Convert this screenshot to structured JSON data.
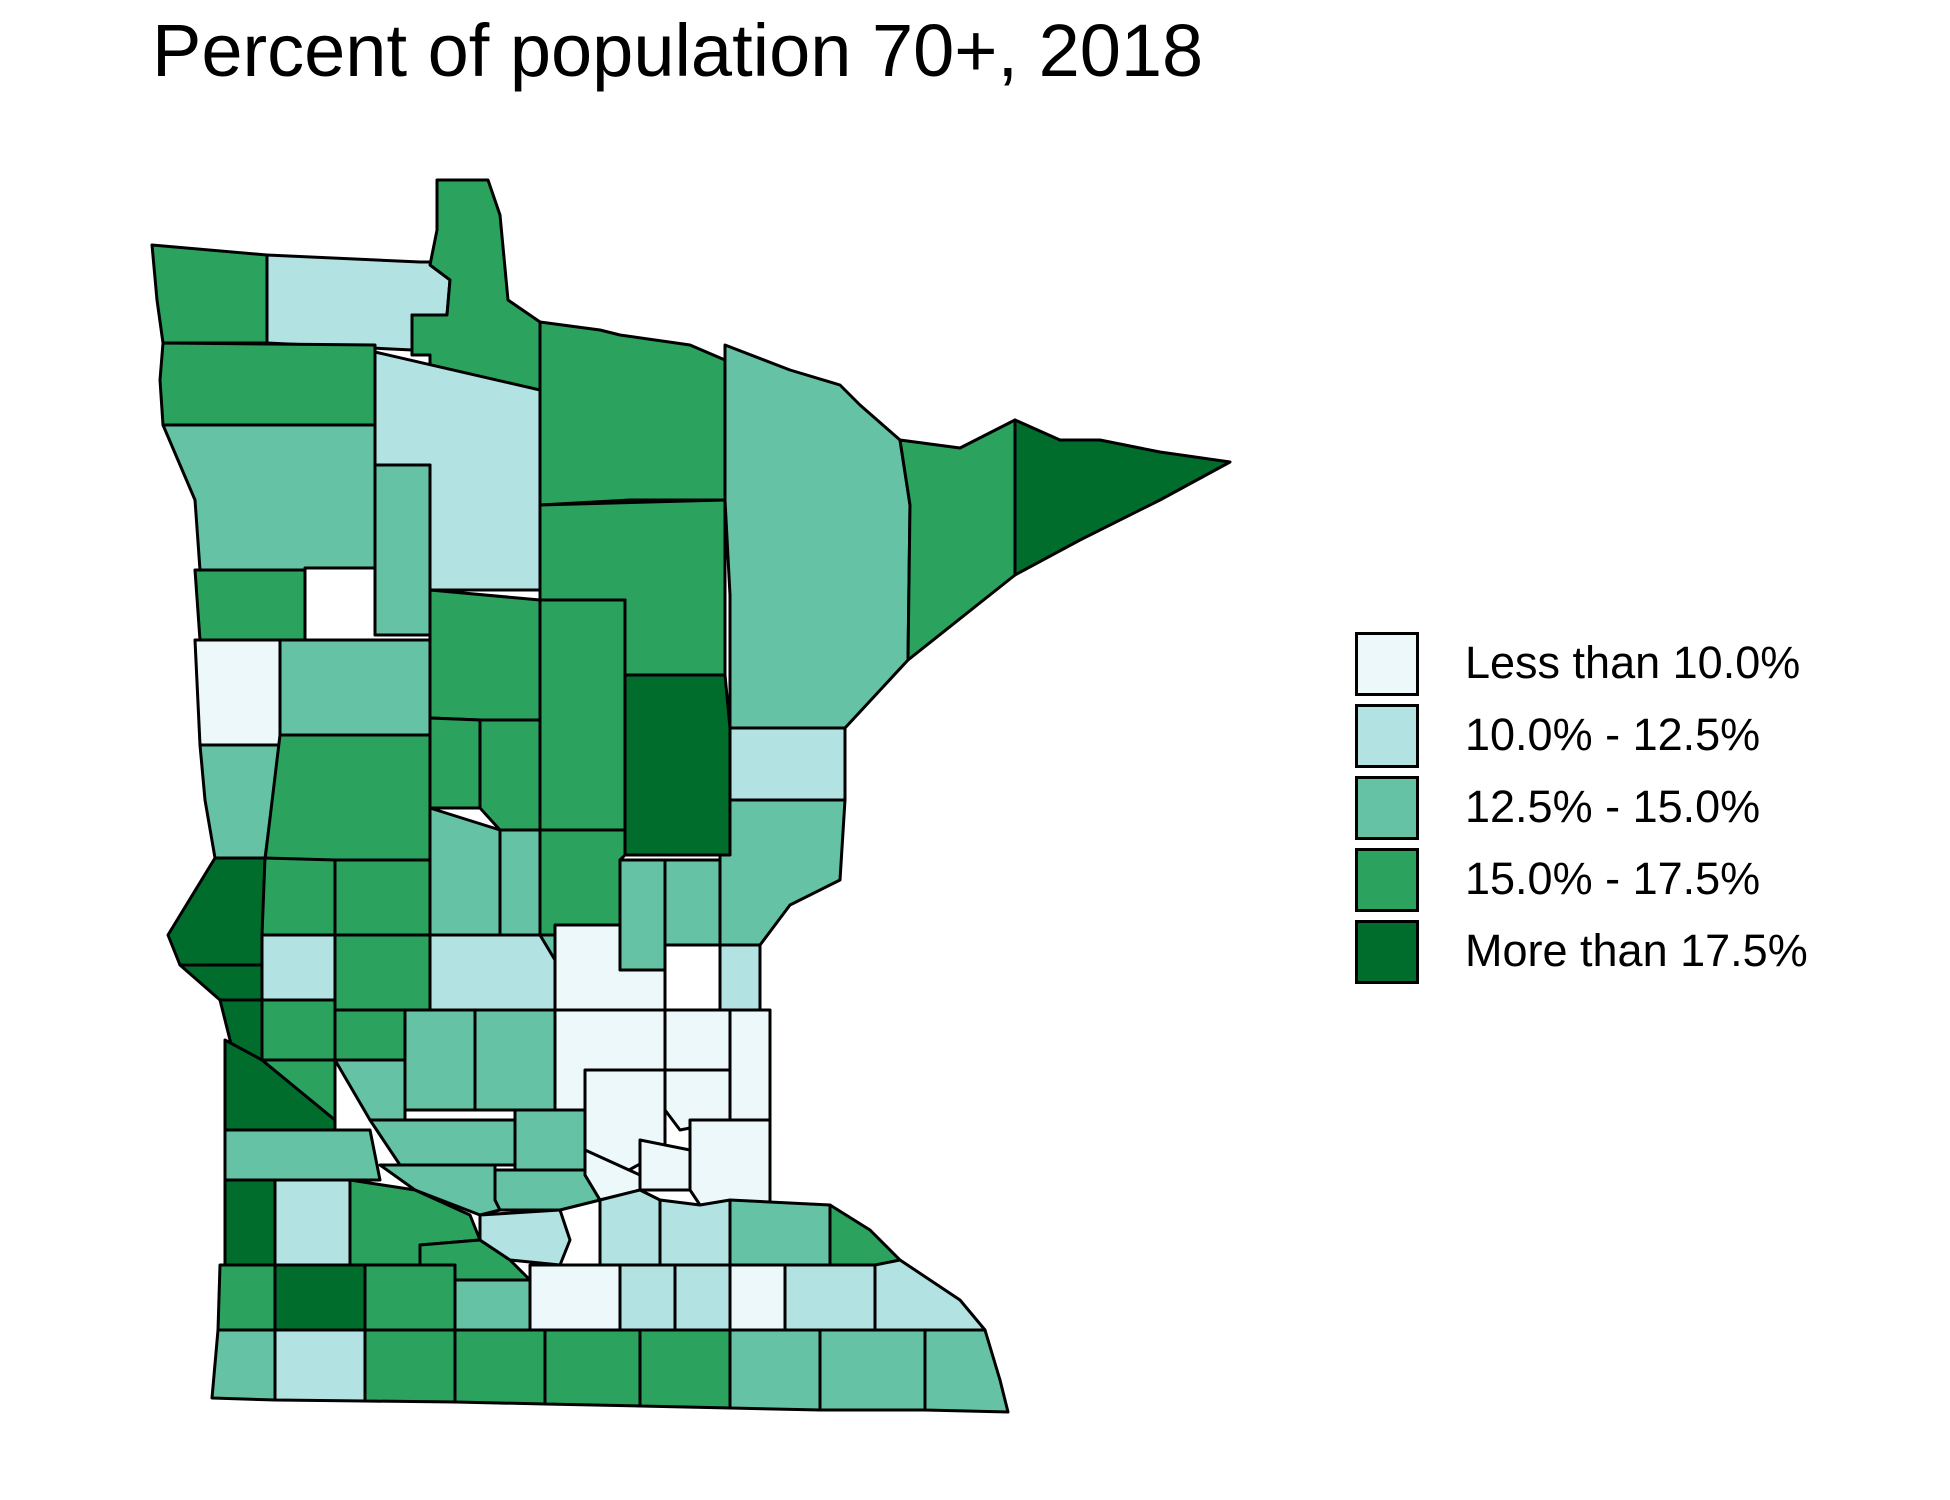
{
  "title": "Percent of population 70+, 2018",
  "legend": {
    "items": [
      {
        "label": "Less than 10.0%",
        "color": "#edf8fb"
      },
      {
        "label": "10.0% - 12.5%",
        "color": "#b2e2e2"
      },
      {
        "label": "12.5% - 15.0%",
        "color": "#66c2a4"
      },
      {
        "label": "15.0% - 17.5%",
        "color": "#2ca25f"
      },
      {
        "label": "More than 17.5%",
        "color": "#006d2c"
      }
    ]
  },
  "chart_data": {
    "type": "choropleth",
    "region": "Minnesota",
    "unit": "counties",
    "bins": [
      "Less than 10.0%",
      "10.0% - 12.5%",
      "12.5% - 15.0%",
      "15.0% - 17.5%",
      "More than 17.5%"
    ],
    "colors": [
      "#edf8fb",
      "#b2e2e2",
      "#66c2a4",
      "#2ca25f",
      "#006d2c"
    ]
  }
}
